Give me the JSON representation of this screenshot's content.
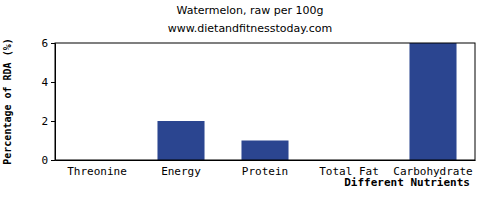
{
  "chart_data": {
    "type": "bar",
    "title": "Watermelon, raw per 100g",
    "subtitle": "www.dietandfitnesstoday.com",
    "xlabel": "Different Nutrients",
    "ylabel": "Percentage of RDA (%)",
    "categories": [
      "Threonine",
      "Energy",
      "Protein",
      "Total Fat",
      "Carbohydrate"
    ],
    "values": [
      0,
      2,
      1,
      0,
      6
    ],
    "color": "#2b4590",
    "ylim": [
      0,
      6
    ],
    "yticks": [
      0,
      2,
      4,
      6
    ],
    "grid": false
  }
}
